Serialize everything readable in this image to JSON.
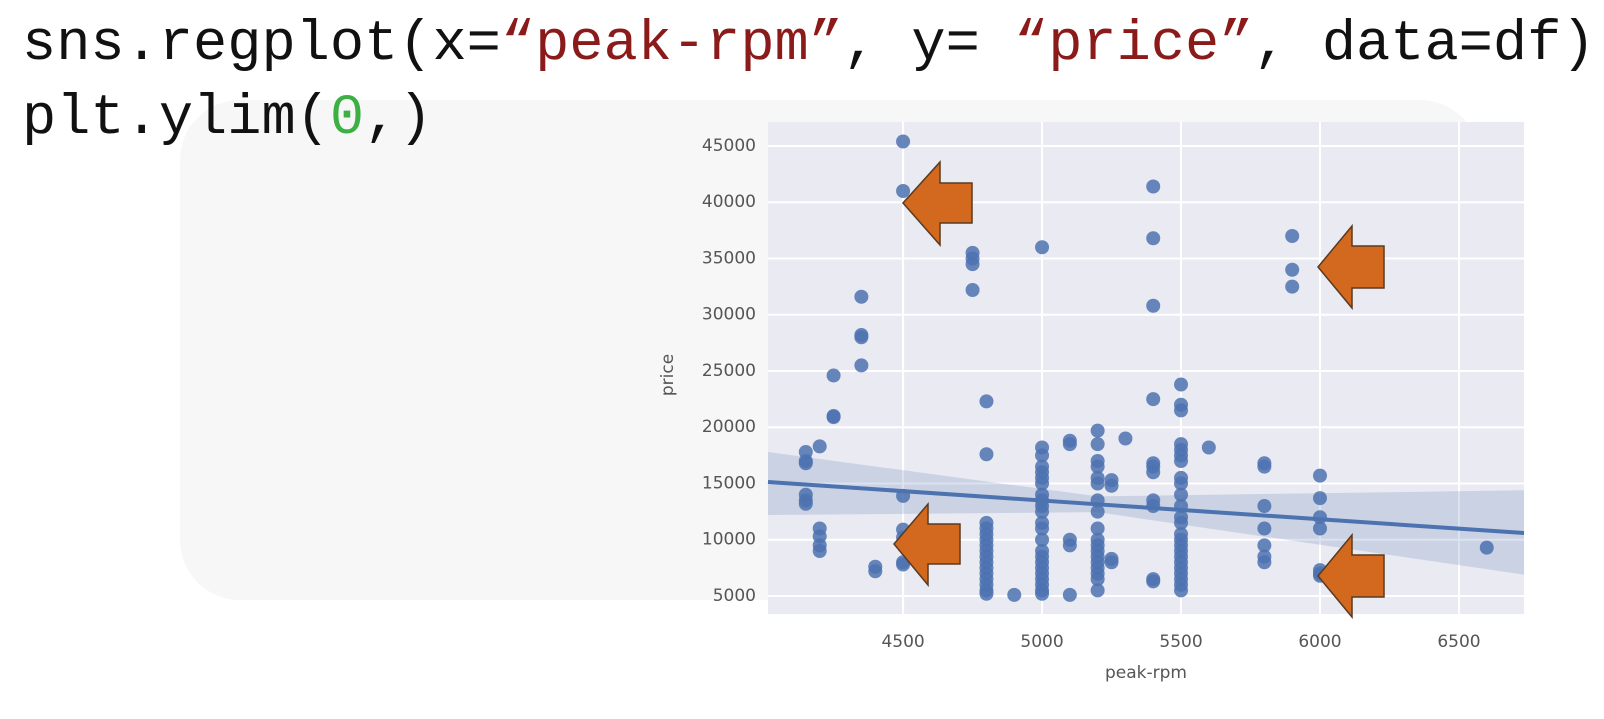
{
  "code": {
    "lines": [
      [
        {
          "text": "sns.regplot(x=",
          "color": "#111111"
        },
        {
          "text": "“peak-rpm”",
          "color": "#8b1a1a"
        },
        {
          "text": ", y= ",
          "color": "#111111"
        },
        {
          "text": "“price”",
          "color": "#8b1a1a"
        },
        {
          "text": ", data=df)",
          "color": "#111111"
        }
      ],
      [
        {
          "text": "plt.ylim(",
          "color": "#111111"
        },
        {
          "text": "0",
          "color": "#3cb043"
        },
        {
          "text": ",)",
          "color": "#111111"
        }
      ]
    ]
  },
  "chart_data": {
    "type": "scatter",
    "xlabel": "peak-rpm",
    "ylabel": "price",
    "color": "#4c72b0",
    "grid": true,
    "xlim": [
      4014,
      6734
    ],
    "ylim": [
      3400,
      47133
    ],
    "xticks": [
      4500,
      5000,
      5500,
      6000,
      6500
    ],
    "yticks": [
      5000,
      10000,
      15000,
      20000,
      25000,
      30000,
      35000,
      40000,
      45000
    ],
    "x": [
      4150,
      4150,
      4150,
      4150,
      4150,
      4150,
      4200,
      4200,
      4200,
      4200,
      4200,
      4250,
      4250,
      4250,
      4350,
      4350,
      4350,
      4350,
      4400,
      4400,
      4500,
      4500,
      4500,
      4500,
      4500,
      4500,
      4500,
      4750,
      4750,
      4750,
      4750,
      4800,
      4800,
      4800,
      4800,
      4800,
      4800,
      4800,
      4800,
      4800,
      4800,
      4800,
      4800,
      4800,
      4800,
      4800,
      4800,
      4900,
      5000,
      5000,
      5000,
      5000,
      5000,
      5000,
      5000,
      5000,
      5000,
      5000,
      5000,
      5000,
      5000,
      5000,
      5000,
      5000,
      5000,
      5000,
      5000,
      5000,
      5000,
      5000,
      5000,
      5100,
      5100,
      5100,
      5100,
      5100,
      5200,
      5200,
      5200,
      5200,
      5200,
      5200,
      5200,
      5200,
      5200,
      5200,
      5200,
      5200,
      5200,
      5200,
      5200,
      5200,
      5200,
      5200,
      5250,
      5250,
      5250,
      5250,
      5300,
      5400,
      5400,
      5400,
      5400,
      5400,
      5400,
      5400,
      5400,
      5400,
      5400,
      5400,
      5500,
      5500,
      5500,
      5500,
      5500,
      5500,
      5500,
      5500,
      5500,
      5500,
      5500,
      5500,
      5500,
      5500,
      5500,
      5500,
      5500,
      5500,
      5500,
      5500,
      5500,
      5500,
      5500,
      5500,
      5600,
      5800,
      5800,
      5800,
      5800,
      5800,
      5800,
      5800,
      5900,
      5900,
      5900,
      6000,
      6000,
      6000,
      6000,
      6000,
      6000,
      6000,
      6600
    ],
    "values": [
      17800,
      17000,
      16800,
      14000,
      13500,
      13200,
      18300,
      11000,
      10300,
      9500,
      9000,
      24600,
      21000,
      20900,
      31600,
      28200,
      28000,
      25500,
      7600,
      7200,
      45400,
      41000,
      13900,
      10900,
      10200,
      8000,
      7800,
      35500,
      35000,
      34500,
      32200,
      22300,
      17600,
      11500,
      11000,
      10500,
      10000,
      9500,
      9000,
      8500,
      8000,
      7500,
      7000,
      6500,
      6000,
      5500,
      5200,
      5100,
      36000,
      18200,
      17500,
      16500,
      16000,
      15500,
      15000,
      14000,
      13500,
      13000,
      12500,
      11500,
      11000,
      10000,
      9000,
      8500,
      8000,
      7500,
      7000,
      6500,
      6000,
      5500,
      5200,
      18800,
      18500,
      10000,
      9500,
      5100,
      19700,
      18500,
      17000,
      16500,
      15500,
      15000,
      13500,
      12500,
      11000,
      10000,
      9500,
      9000,
      8500,
      8000,
      7500,
      7000,
      6500,
      5500,
      15300,
      14800,
      8300,
      8000,
      19000,
      41400,
      36800,
      30800,
      22500,
      16800,
      16500,
      16000,
      13500,
      13000,
      6500,
      6300,
      23800,
      22000,
      21500,
      18500,
      18000,
      17500,
      17000,
      15500,
      15000,
      14000,
      13000,
      12000,
      11500,
      10500,
      10000,
      9500,
      9000,
      8500,
      8000,
      7500,
      7000,
      6500,
      6000,
      5500,
      18200,
      16800,
      16500,
      13000,
      11000,
      9500,
      8500,
      8000,
      37000,
      34000,
      32500,
      15700,
      13700,
      12000,
      11000,
      7300,
      7000,
      6800,
      9300
    ],
    "regression": {
      "color": "#4c72b0",
      "x": [
        4014,
        5200,
        6734
      ],
      "values": [
        15133,
        13150,
        10600
      ],
      "ci_upper": [
        17800,
        13850,
        14400
      ],
      "ci_lower": [
        12200,
        12450,
        6900
      ]
    }
  }
}
